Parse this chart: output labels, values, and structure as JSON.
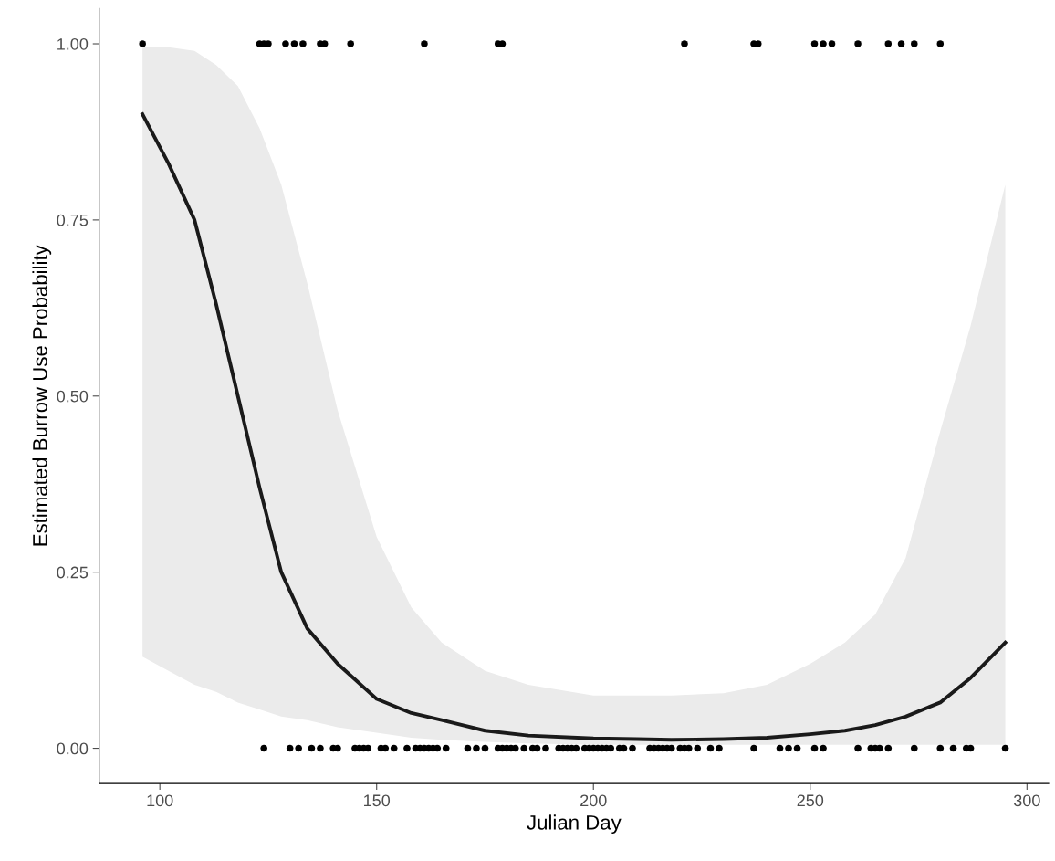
{
  "chart_data": {
    "type": "scatter",
    "xlabel": "Julian Day",
    "ylabel": "Estimated Burrow Use Probability",
    "xlim": [
      86,
      305
    ],
    "xticks": [
      100,
      150,
      200,
      250,
      300
    ],
    "ylim": [
      -0.05,
      1.05
    ],
    "yticks": [
      {
        "value": 0,
        "label": "0.00"
      },
      {
        "value": 0.25,
        "label": "0.25"
      },
      {
        "value": 0.5,
        "label": "0.50"
      },
      {
        "value": 0.75,
        "label": "0.75"
      },
      {
        "value": 1,
        "label": "1.00"
      }
    ],
    "grid": false,
    "legend": false,
    "series": [
      {
        "type": "line",
        "color": "#1a1a1a",
        "line_style": "solid",
        "marker": "none",
        "x": [
          96,
          102,
          108,
          113,
          118,
          123,
          128,
          134,
          141,
          150,
          158,
          165,
          175,
          185,
          200,
          210,
          218,
          230,
          240,
          250,
          258,
          265,
          272,
          280,
          287,
          295
        ],
        "values": [
          0.9,
          0.83,
          0.75,
          0.63,
          0.5,
          0.37,
          0.25,
          0.17,
          0.12,
          0.07,
          0.05,
          0.04,
          0.025,
          0.018,
          0.014,
          0.013,
          0.012,
          0.013,
          0.015,
          0.02,
          0.025,
          0.033,
          0.045,
          0.065,
          0.1,
          0.15
        ],
        "lower": [
          0.13,
          0.11,
          0.09,
          0.08,
          0.065,
          0.055,
          0.045,
          0.04,
          0.03,
          0.022,
          0.015,
          0.012,
          0.009,
          0.007,
          0.005,
          0.005,
          0.005,
          0.005,
          0.005,
          0.005,
          0.005,
          0.005,
          0.005,
          0.005,
          0.005,
          0.005
        ],
        "upper": [
          0.995,
          0.995,
          0.99,
          0.97,
          0.94,
          0.88,
          0.8,
          0.66,
          0.48,
          0.3,
          0.2,
          0.15,
          0.11,
          0.09,
          0.075,
          0.075,
          0.075,
          0.078,
          0.09,
          0.12,
          0.15,
          0.19,
          0.27,
          0.45,
          0.6,
          0.8
        ]
      },
      {
        "color": "#000000",
        "marker": "circle",
        "x": [
          96,
          123,
          124,
          125,
          129,
          131,
          133,
          137,
          138,
          144,
          161,
          178,
          179,
          221,
          237,
          238,
          251,
          253,
          255,
          261,
          268,
          271,
          274,
          280
        ],
        "values": [
          1,
          1,
          1,
          1,
          1,
          1,
          1,
          1,
          1,
          1,
          1,
          1,
          1,
          1,
          1,
          1,
          1,
          1,
          1,
          1,
          1,
          1,
          1,
          1
        ]
      },
      {
        "color": "#000000",
        "marker": "circle",
        "x": [
          124,
          130,
          132,
          135,
          137,
          140,
          141,
          145,
          146,
          147,
          148,
          151,
          152,
          154,
          157,
          159,
          160,
          161,
          162,
          163,
          164,
          166,
          171,
          173,
          175,
          178,
          179,
          180,
          181,
          182,
          184,
          186,
          187,
          189,
          192,
          193,
          194,
          195,
          196,
          198,
          199,
          200,
          201,
          202,
          203,
          204,
          206,
          207,
          209,
          213,
          214,
          215,
          216,
          217,
          218,
          220,
          221,
          222,
          224,
          227,
          229,
          237,
          243,
          245,
          247,
          251,
          253,
          261,
          264,
          265,
          266,
          268,
          274,
          280,
          283,
          286,
          287,
          295
        ],
        "values": [
          0,
          0,
          0,
          0,
          0,
          0,
          0,
          0,
          0,
          0,
          0,
          0,
          0,
          0,
          0,
          0,
          0,
          0,
          0,
          0,
          0,
          0,
          0,
          0,
          0,
          0,
          0,
          0,
          0,
          0,
          0,
          0,
          0,
          0,
          0,
          0,
          0,
          0,
          0,
          0,
          0,
          0,
          0,
          0,
          0,
          0,
          0,
          0,
          0,
          0,
          0,
          0,
          0,
          0,
          0,
          0,
          0,
          0,
          0,
          0,
          0,
          0,
          0,
          0,
          0,
          0,
          0,
          0,
          0,
          0,
          0,
          0,
          0,
          0,
          0,
          0,
          0,
          0
        ]
      }
    ]
  }
}
